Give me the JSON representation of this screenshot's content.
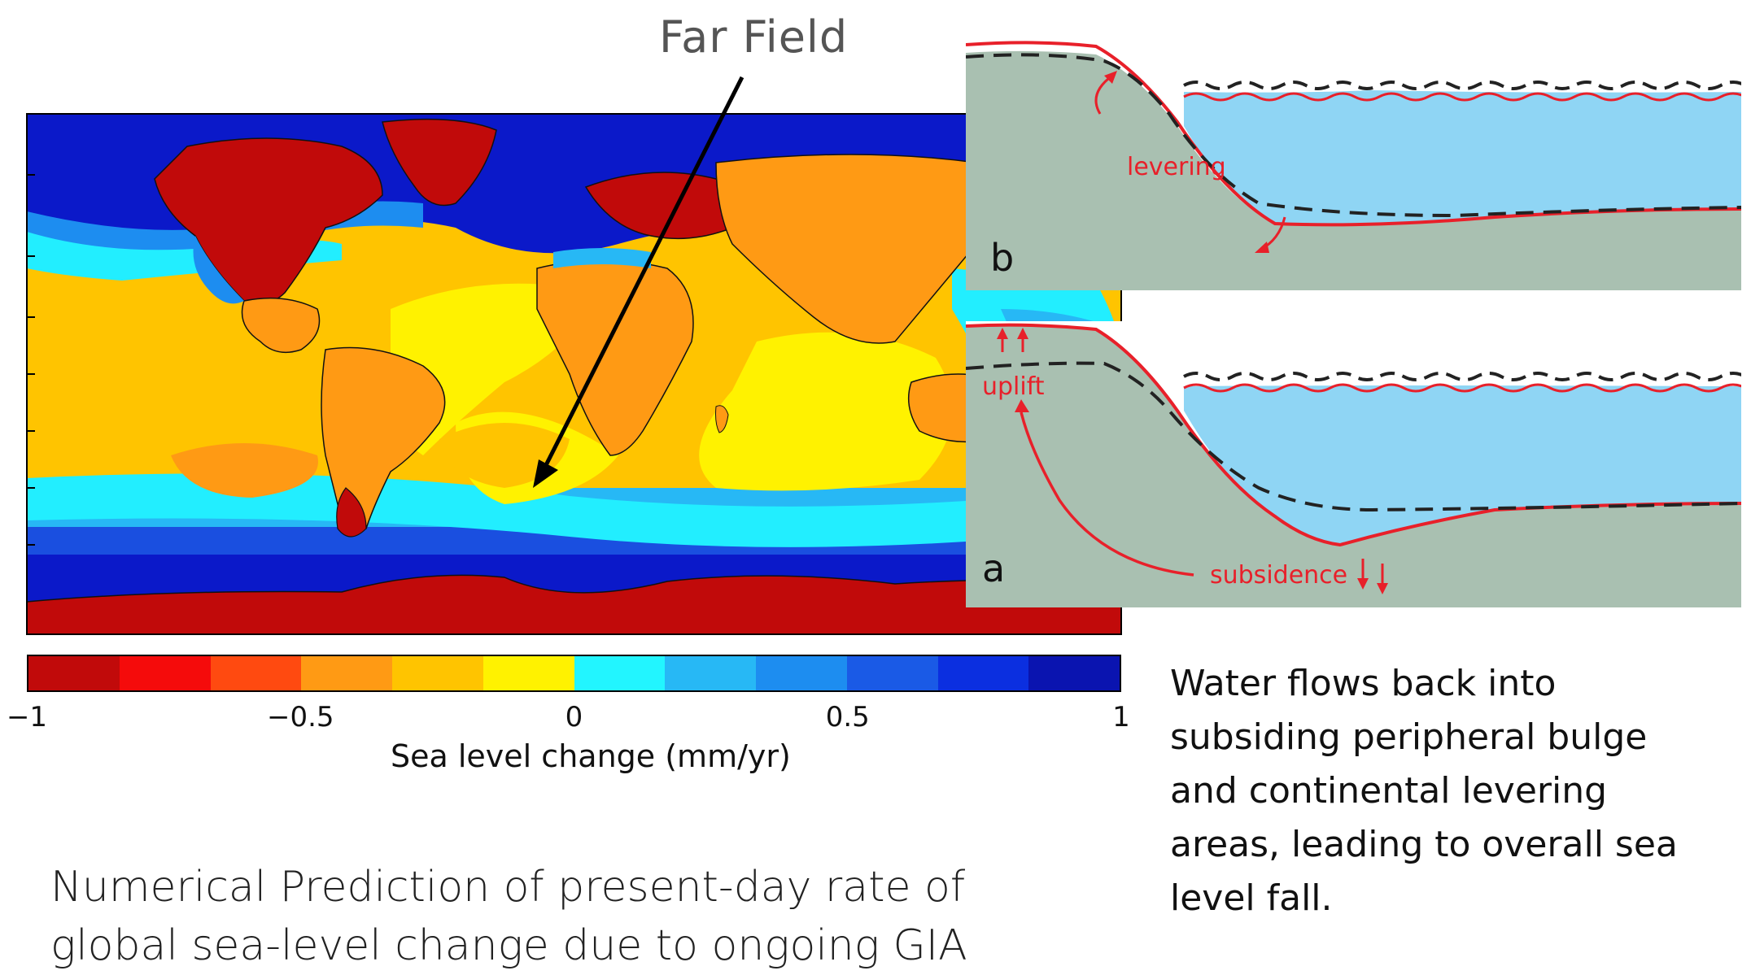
{
  "map": {
    "annotation_label": "Far Field",
    "colors": {
      "ocean_deep_blue": "#0b19c9",
      "blue": "#1a4fe0",
      "mid_blue": "#1d8df0",
      "light_blue": "#27b8f5",
      "cyan": "#22eeff",
      "yellow": "#fff200",
      "light_orange": "#ffc400",
      "orange": "#ff9a14",
      "dark_orange": "#ff5a10",
      "red": "#f50b0b",
      "dark_red": "#c10a0a"
    }
  },
  "colorbar": {
    "title": "Sea level change (mm/yr)",
    "min": -1,
    "max": 1,
    "ticks": [
      "−1",
      "−0.5",
      "0",
      "0.5",
      "1"
    ],
    "tick_values": [
      -1,
      -0.5,
      0,
      0.5,
      1
    ],
    "segment_colors": [
      "#c10a0a",
      "#f50b0b",
      "#ff4a10",
      "#ff9a14",
      "#ffc400",
      "#fff200",
      "#22f5ff",
      "#27b8f5",
      "#1d8df0",
      "#1a5ae6",
      "#0b2fe0",
      "#0a14b0"
    ]
  },
  "panels": {
    "b": {
      "letter": "b",
      "annotation": "levering",
      "land_color": "#a9c0b1",
      "water_color": "#8fd5f4",
      "line_color": "#e8202a"
    },
    "a": {
      "letter": "a",
      "annotation_uplift": "uplift",
      "annotation_subsidence": "subsidence",
      "land_color": "#a9c0b1",
      "water_color": "#8fd5f4",
      "line_color": "#e8202a"
    }
  },
  "captions": {
    "left_line1": "Numerical Prediction of present-day rate of",
    "left_line2": "global sea-level change due to ongoing GIA",
    "right_lines": [
      "Water flows back into",
      "subsiding peripheral bulge",
      "and continental levering",
      "areas, leading to overall sea",
      "level fall."
    ]
  }
}
